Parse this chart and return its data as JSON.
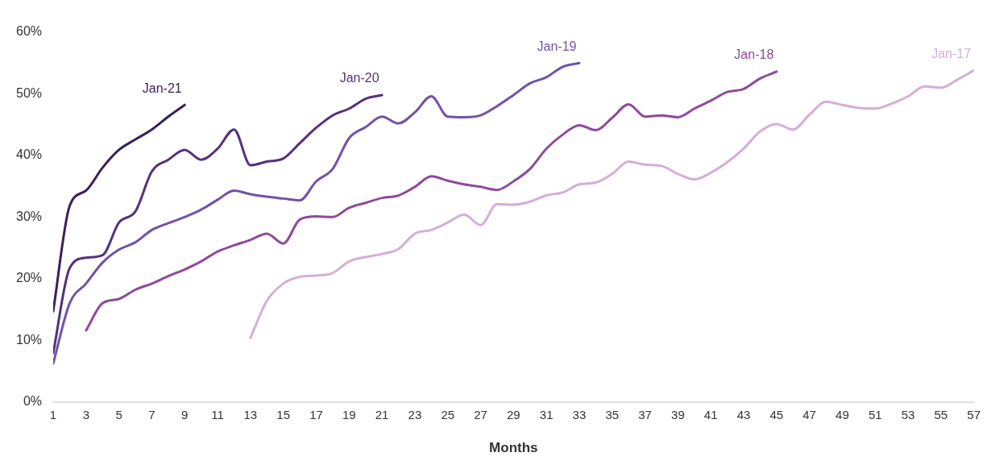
{
  "chart_data": {
    "type": "line",
    "xlabel": "Months",
    "x": [
      1,
      2,
      3,
      4,
      5,
      6,
      7,
      8,
      9,
      10,
      11,
      12,
      13,
      14,
      15,
      16,
      17,
      18,
      19,
      20,
      21,
      22,
      23,
      24,
      25,
      26,
      27,
      28,
      29,
      30,
      31,
      32,
      33,
      34,
      35,
      36,
      37,
      38,
      39,
      40,
      41,
      42,
      43,
      44,
      45,
      46,
      47,
      48,
      49,
      50,
      51,
      52,
      53,
      54,
      55,
      56,
      57
    ],
    "xlim": [
      1,
      57
    ],
    "xticks": [
      1,
      3,
      5,
      7,
      9,
      11,
      13,
      15,
      17,
      19,
      21,
      23,
      25,
      27,
      29,
      31,
      33,
      35,
      37,
      39,
      41,
      43,
      45,
      47,
      49,
      51,
      53,
      55,
      57
    ],
    "ylim": [
      0,
      60
    ],
    "yticks": [
      {
        "value": 0,
        "label": "0%"
      },
      {
        "value": 10,
        "label": "10%"
      },
      {
        "value": 20,
        "label": "20%"
      },
      {
        "value": 30,
        "label": "30%"
      },
      {
        "value": 40,
        "label": "40%"
      },
      {
        "value": 50,
        "label": "50%"
      },
      {
        "value": 60,
        "label": "60%"
      }
    ],
    "grid": false,
    "legend": false,
    "series": [
      {
        "name": "Jan-21",
        "color": "#3b1f5a",
        "values": [
          14.7,
          31.8,
          34.3,
          38,
          40.9,
          42.6,
          44.2,
          46.3,
          48.2,
          null,
          null,
          null,
          null,
          null,
          null,
          null,
          null,
          null,
          null,
          null,
          null,
          null,
          null,
          null,
          null,
          null,
          null,
          null,
          null,
          null,
          null,
          null,
          null,
          null,
          null,
          null,
          null,
          null,
          null,
          null,
          null,
          null,
          null,
          null,
          null,
          null,
          null,
          null,
          null,
          null,
          null,
          null,
          null,
          null,
          null,
          null,
          null
        ]
      },
      {
        "name": "Jan-20",
        "color": "#54307f",
        "values": [
          7.9,
          21.7,
          23.4,
          23.8,
          29.1,
          30.9,
          37.4,
          39.3,
          40.9,
          39.3,
          41.1,
          44.2,
          38.4,
          39,
          39.5,
          42,
          44.5,
          46.5,
          47.6,
          49.2,
          49.8,
          null,
          null,
          null,
          null,
          null,
          null,
          null,
          null,
          null,
          null,
          null,
          null,
          null,
          null,
          null,
          null,
          null,
          null,
          null,
          null,
          null,
          null,
          null,
          null,
          null,
          null,
          null,
          null,
          null,
          null,
          null,
          null,
          null,
          null,
          null,
          null
        ]
      },
      {
        "name": "Jan-19",
        "color": "#7152a8",
        "values": [
          6.2,
          16,
          19.2,
          22.6,
          24.7,
          25.9,
          27.9,
          29,
          30,
          31.2,
          32.8,
          34.3,
          33.7,
          33.3,
          33,
          32.7,
          35.8,
          37.8,
          42.8,
          44.6,
          46.3,
          45.2,
          47,
          49.6,
          46.3,
          46.2,
          46.5,
          48,
          49.8,
          51.7,
          52.7,
          54.4,
          55,
          null,
          null,
          null,
          null,
          null,
          null,
          null,
          null,
          null,
          null,
          null,
          null,
          null,
          null,
          null,
          null,
          null,
          null,
          null,
          null,
          null,
          null,
          null,
          null
        ]
      },
      {
        "name": "Jan-18",
        "color": "#8e4a9c",
        "values": [
          null,
          null,
          11.6,
          16,
          16.7,
          18.2,
          19.2,
          20.4,
          21.5,
          22.8,
          24.4,
          25.4,
          26.3,
          27.3,
          25.7,
          29.6,
          30.1,
          30,
          31.5,
          32.3,
          33.1,
          33.5,
          34.9,
          36.6,
          35.9,
          35.3,
          34.9,
          34.4,
          35.8,
          37.8,
          41.1,
          43.4,
          44.9,
          44.1,
          46.1,
          48.3,
          46.3,
          46.5,
          46.2,
          47.6,
          48.9,
          50.3,
          50.8,
          52.5,
          53.6,
          null,
          null,
          null,
          null,
          null,
          null,
          null,
          null,
          null,
          null,
          null,
          null
        ]
      },
      {
        "name": "Jan-17",
        "color": "#d5aed6",
        "values": [
          null,
          null,
          null,
          null,
          null,
          null,
          null,
          null,
          null,
          null,
          null,
          null,
          10.4,
          16.4,
          19.2,
          20.3,
          20.5,
          20.9,
          22.8,
          23.5,
          24,
          24.8,
          27.3,
          27.9,
          29.1,
          30.4,
          28.7,
          32.1,
          32,
          32.5,
          33.5,
          34,
          35.3,
          35.6,
          37,
          39,
          38.5,
          38.3,
          37,
          36.1,
          37.2,
          38.9,
          41.1,
          43.9,
          45.1,
          44.2,
          46.6,
          48.7,
          48.2,
          47.7,
          47.6,
          48.4,
          49.6,
          51.2,
          51,
          52.3,
          53.8
        ]
      }
    ]
  }
}
